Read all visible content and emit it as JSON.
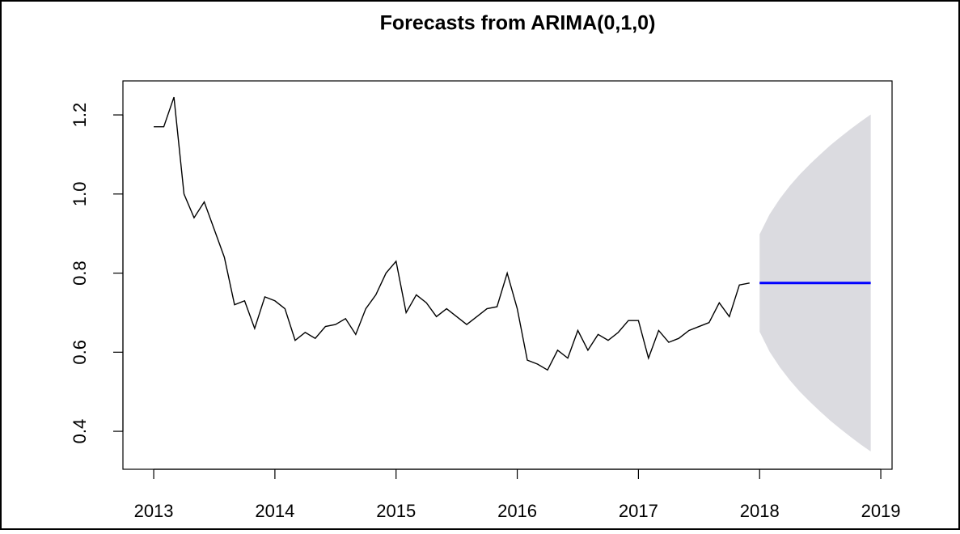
{
  "chart_data": {
    "type": "line",
    "title": "Forecasts from ARIMA(0,1,0)",
    "series": [
      {
        "name": "observed",
        "color": "#000000",
        "x": [
          2013,
          2013.083,
          2013.167,
          2013.25,
          2013.333,
          2013.417,
          2013.5,
          2013.583,
          2013.667,
          2013.75,
          2013.833,
          2013.917,
          2014,
          2014.083,
          2014.167,
          2014.25,
          2014.333,
          2014.417,
          2014.5,
          2014.583,
          2014.667,
          2014.75,
          2014.833,
          2014.917,
          2015,
          2015.083,
          2015.167,
          2015.25,
          2015.333,
          2015.417,
          2015.5,
          2015.583,
          2015.667,
          2015.75,
          2015.833,
          2015.917,
          2016,
          2016.083,
          2016.167,
          2016.25,
          2016.333,
          2016.417,
          2016.5,
          2016.583,
          2016.667,
          2016.75,
          2016.833,
          2016.917,
          2017,
          2017.083,
          2017.167,
          2017.25,
          2017.333,
          2017.417,
          2017.5,
          2017.583,
          2017.667,
          2017.75,
          2017.833,
          2017.917
        ],
        "values": [
          1.17,
          1.17,
          1.245,
          1.0,
          0.94,
          0.98,
          0.91,
          0.84,
          0.72,
          0.73,
          0.66,
          0.74,
          0.73,
          0.71,
          0.63,
          0.65,
          0.635,
          0.665,
          0.67,
          0.685,
          0.645,
          0.71,
          0.745,
          0.8,
          0.83,
          0.7,
          0.745,
          0.725,
          0.69,
          0.71,
          0.69,
          0.67,
          0.69,
          0.71,
          0.715,
          0.8,
          0.71,
          0.58,
          0.57,
          0.555,
          0.605,
          0.585,
          0.655,
          0.605,
          0.645,
          0.63,
          0.65,
          0.68,
          0.68,
          0.585,
          0.655,
          0.625,
          0.635,
          0.655,
          0.665,
          0.675,
          0.725,
          0.69,
          0.77,
          0.775
        ]
      },
      {
        "name": "forecast",
        "color": "#0000ff",
        "x": [
          2018,
          2018.083,
          2018.167,
          2018.25,
          2018.333,
          2018.417,
          2018.5,
          2018.583,
          2018.667,
          2018.75,
          2018.833,
          2018.917
        ],
        "values": [
          0.775,
          0.775,
          0.775,
          0.775,
          0.775,
          0.775,
          0.775,
          0.775,
          0.775,
          0.775,
          0.775,
          0.775
        ]
      }
    ],
    "band": {
      "color": "#dbdbe0",
      "x": [
        2018,
        2018.083,
        2018.167,
        2018.25,
        2018.333,
        2018.417,
        2018.5,
        2018.583,
        2018.667,
        2018.75,
        2018.833,
        2018.917
      ],
      "lower": [
        0.652,
        0.601,
        0.562,
        0.529,
        0.5,
        0.474,
        0.45,
        0.427,
        0.406,
        0.386,
        0.367,
        0.349
      ],
      "upper": [
        0.898,
        0.949,
        0.988,
        1.021,
        1.05,
        1.076,
        1.1,
        1.123,
        1.144,
        1.164,
        1.183,
        1.201
      ]
    },
    "xlim": [
      2012.746,
      2019.093
    ],
    "ylim": [
      0.304,
      1.286
    ],
    "xticks": [
      2013,
      2014,
      2015,
      2016,
      2017,
      2018,
      2019
    ],
    "yticks": [
      {
        "value": 0.4,
        "label": "0.4"
      },
      {
        "value": 0.6,
        "label": "0.6"
      },
      {
        "value": 0.8,
        "label": "0.8"
      },
      {
        "value": 1.0,
        "label": "1.0"
      },
      {
        "value": 1.2,
        "label": "1.2"
      }
    ]
  }
}
